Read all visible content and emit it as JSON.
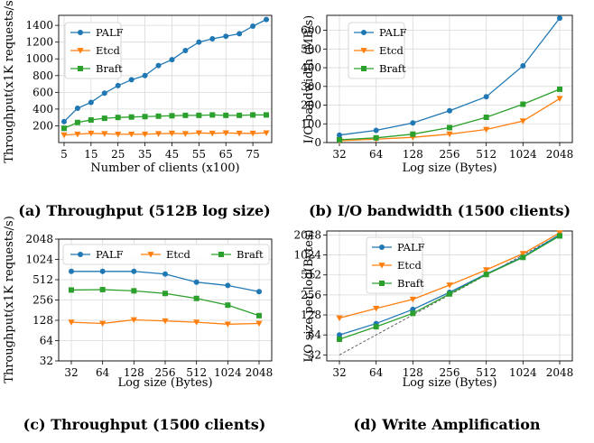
{
  "colors": {
    "PALF": "#1f77b4",
    "Etcd": "#ff7f0e",
    "Braft": "#2ca02c",
    "reference": "#555555"
  },
  "chart_data": [
    {
      "id": "a",
      "type": "line",
      "caption": "(a) Throughput (512B log size)",
      "xlabel": "Number of clients (x100)",
      "ylabel": "Throughput(x1K requests/s)",
      "xscale": "linear",
      "yscale": "linear",
      "xlim": [
        3,
        82
      ],
      "ylim": [
        0,
        1520
      ],
      "xticks": [
        5,
        15,
        25,
        35,
        45,
        55,
        65,
        75
      ],
      "yticks": [
        200,
        400,
        600,
        800,
        1000,
        1200,
        1400
      ],
      "grid": true,
      "legend": "top-left",
      "x": [
        5,
        10,
        15,
        20,
        25,
        30,
        35,
        40,
        45,
        50,
        55,
        60,
        65,
        70,
        75,
        80
      ],
      "series": [
        {
          "name": "PALF",
          "marker": "circle",
          "values": [
            250,
            410,
            480,
            590,
            680,
            750,
            800,
            920,
            990,
            1100,
            1200,
            1240,
            1270,
            1300,
            1390,
            1470
          ]
        },
        {
          "name": "Etcd",
          "marker": "triangle-down",
          "values": [
            90,
            100,
            110,
            105,
            100,
            100,
            100,
            105,
            110,
            105,
            115,
            110,
            115,
            110,
            110,
            115
          ]
        },
        {
          "name": "Braft",
          "marker": "square",
          "values": [
            170,
            240,
            270,
            290,
            300,
            305,
            310,
            315,
            320,
            325,
            325,
            330,
            325,
            325,
            330,
            330
          ]
        }
      ]
    },
    {
      "id": "b",
      "type": "line",
      "caption": "(b) I/O bandwidth (1500 clients)",
      "xlabel": "Log size (Bytes)",
      "ylabel": "I/O bandwidth (MB/s)",
      "xscale": "log2",
      "yscale": "linear",
      "xlim": [
        32,
        2048
      ],
      "ylim": [
        0,
        680
      ],
      "xticks": [
        32,
        64,
        128,
        256,
        512,
        1024,
        2048
      ],
      "yticks": [
        0,
        100,
        200,
        300,
        400,
        500,
        600
      ],
      "grid": true,
      "legend": "top-left",
      "x": [
        32,
        64,
        128,
        256,
        512,
        1024,
        2048
      ],
      "series": [
        {
          "name": "PALF",
          "marker": "circle",
          "values": [
            40,
            65,
            105,
            170,
            245,
            410,
            665
          ]
        },
        {
          "name": "Etcd",
          "marker": "triangle-down",
          "values": [
            10,
            18,
            28,
            45,
            70,
            115,
            235
          ]
        },
        {
          "name": "Braft",
          "marker": "square",
          "values": [
            15,
            25,
            45,
            80,
            135,
            205,
            285
          ]
        }
      ]
    },
    {
      "id": "c",
      "type": "line",
      "caption": "(c) Throughput (1500 clients)",
      "xlabel": "Log size (Bytes)",
      "ylabel": "Throughput(x1K requests/s)",
      "xscale": "log2",
      "yscale": "log2",
      "xlim": [
        32,
        2048
      ],
      "ylim": [
        32,
        2048
      ],
      "xticks": [
        32,
        64,
        128,
        256,
        512,
        1024,
        2048
      ],
      "yticks": [
        32,
        64,
        128,
        256,
        512,
        1024,
        2048
      ],
      "grid": true,
      "legend": "top",
      "x": [
        32,
        64,
        128,
        256,
        512,
        1024,
        2048
      ],
      "series": [
        {
          "name": "PALF",
          "marker": "circle",
          "values": [
            680,
            680,
            680,
            620,
            470,
            420,
            340
          ]
        },
        {
          "name": "Etcd",
          "marker": "triangle-down",
          "values": [
            120,
            115,
            130,
            125,
            120,
            112,
            115
          ]
        },
        {
          "name": "Braft",
          "marker": "square",
          "values": [
            360,
            365,
            350,
            320,
            270,
            215,
            150
          ]
        }
      ]
    },
    {
      "id": "d",
      "type": "line",
      "caption": "(d) Write Amplification",
      "xlabel": "Log size (Bytes)",
      "ylabel": "I/O size per log(Bytes)",
      "xscale": "log2",
      "yscale": "log2",
      "xlim": [
        32,
        2048
      ],
      "ylim": [
        26,
        2350
      ],
      "xticks": [
        32,
        64,
        128,
        256,
        512,
        1024,
        2048
      ],
      "yticks": [
        32,
        64,
        128,
        256,
        512,
        1024,
        2048
      ],
      "grid": true,
      "legend": "top-left",
      "x": [
        32,
        64,
        128,
        256,
        512,
        1024,
        2048
      ],
      "reference": {
        "name": "y = x",
        "style": "dashed",
        "x": [
          32,
          2048
        ],
        "values": [
          32,
          2048
        ]
      },
      "series": [
        {
          "name": "PALF",
          "marker": "circle",
          "values": [
            64,
            95,
            155,
            280,
            530,
            960,
            2080
          ]
        },
        {
          "name": "Etcd",
          "marker": "triangle-down",
          "values": [
            115,
            160,
            220,
            360,
            610,
            1070,
            2200
          ]
        },
        {
          "name": "Braft",
          "marker": "square",
          "values": [
            55,
            85,
            135,
            265,
            520,
            940,
            1980
          ]
        }
      ]
    }
  ]
}
